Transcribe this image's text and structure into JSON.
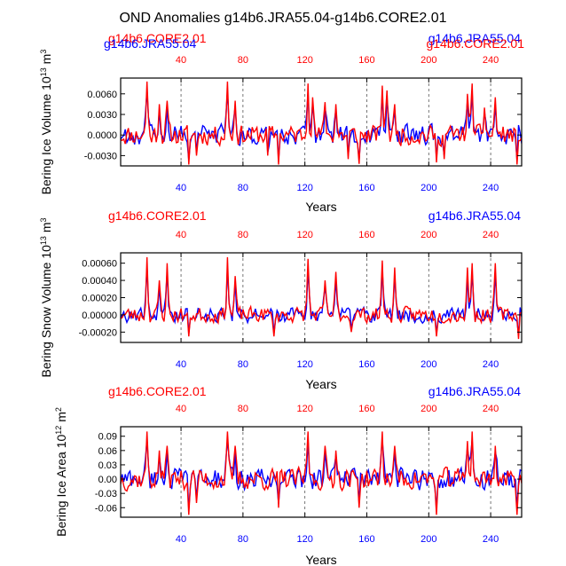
{
  "title": "OND Anomalies g14b6.JRA55.04-g14b6.CORE2.01",
  "colors": {
    "jra": "#0000ff",
    "core": "#ff0000",
    "axis": "#000000",
    "grid": "#555555"
  },
  "chart_data": [
    {
      "type": "line",
      "ylabel_main": "Bering Ice Volume 10",
      "ylabel_exp": "13",
      "ylabel_unit": " m",
      "ylabel_unit_exp": "3",
      "xlabel": "Years",
      "xlim": [
        1,
        260
      ],
      "ylim": [
        -0.0045,
        0.0083
      ],
      "yticks": [
        -0.003,
        0.0,
        0.003,
        0.006
      ],
      "ytick_labels": [
        "-0.0030",
        "0.0000",
        "0.0030",
        "0.0060"
      ],
      "xticks_bottom": [
        40,
        80,
        120,
        160,
        200,
        240
      ],
      "xticks_top": [
        40,
        80,
        120,
        160,
        200,
        240
      ],
      "vlines": [
        40,
        80,
        120,
        160,
        200,
        240
      ],
      "series_labels": [
        {
          "text": "g14b6.CORE2.01",
          "color": "red",
          "pos": "top-left"
        },
        {
          "text": "g14b6.JRA55.04",
          "color": "blue",
          "pos": "top-left"
        },
        {
          "text": "g14b6.JRA55.04",
          "color": "blue",
          "pos": "top-right"
        },
        {
          "text": "g14b6.CORE2.01",
          "color": "red",
          "pos": "top-right"
        }
      ],
      "peaks": [
        {
          "x": 18,
          "y": 0.0078
        },
        {
          "x": 26,
          "y": 0.0045
        },
        {
          "x": 31,
          "y": 0.005
        },
        {
          "x": 70,
          "y": 0.0078
        },
        {
          "x": 75,
          "y": 0.005
        },
        {
          "x": 122,
          "y": 0.0075
        },
        {
          "x": 125,
          "y": 0.0055
        },
        {
          "x": 133,
          "y": 0.0048
        },
        {
          "x": 140,
          "y": 0.0045
        },
        {
          "x": 170,
          "y": 0.0072
        },
        {
          "x": 173,
          "y": 0.0065
        },
        {
          "x": 178,
          "y": 0.0045
        },
        {
          "x": 225,
          "y": 0.006
        },
        {
          "x": 228,
          "y": 0.0075
        },
        {
          "x": 236,
          "y": 0.004
        },
        {
          "x": 243,
          "y": 0.0055
        }
      ],
      "troughs": [
        {
          "x": 45,
          "y": -0.0043
        },
        {
          "x": 50,
          "y": -0.003
        },
        {
          "x": 96,
          "y": -0.003
        },
        {
          "x": 103,
          "y": -0.0043
        },
        {
          "x": 148,
          "y": -0.0035
        },
        {
          "x": 155,
          "y": -0.0042
        },
        {
          "x": 205,
          "y": -0.004
        },
        {
          "x": 210,
          "y": -0.0035
        },
        {
          "x": 257,
          "y": -0.0043
        }
      ],
      "amp": 0.0018,
      "seed": 11
    },
    {
      "type": "line",
      "ylabel_main": "Bering Snow Volume 10",
      "ylabel_exp": "13",
      "ylabel_unit": " m",
      "ylabel_unit_exp": "3",
      "xlabel": "Years",
      "xlim": [
        1,
        260
      ],
      "ylim": [
        -0.00032,
        0.00072
      ],
      "yticks": [
        -0.0002,
        0.0,
        0.0002,
        0.0004,
        0.0006
      ],
      "ytick_labels": [
        "-0.00020",
        "0.00000",
        "0.00020",
        "0.00040",
        "0.00060"
      ],
      "xticks_bottom": [
        40,
        80,
        120,
        160,
        200,
        240
      ],
      "xticks_top": [
        40,
        80,
        120,
        160,
        200,
        240
      ],
      "vlines": [
        40,
        80,
        120,
        160,
        200,
        240
      ],
      "series_labels": [
        {
          "text": "g14b6.CORE2.01",
          "color": "red",
          "pos": "top-left"
        },
        {
          "text": "g14b6.JRA55.04",
          "color": "blue",
          "pos": "top-right"
        }
      ],
      "peaks": [
        {
          "x": 18,
          "y": 0.00067
        },
        {
          "x": 26,
          "y": 0.0004
        },
        {
          "x": 31,
          "y": 0.0006
        },
        {
          "x": 70,
          "y": 0.00067
        },
        {
          "x": 75,
          "y": 0.00045
        },
        {
          "x": 122,
          "y": 0.00065
        },
        {
          "x": 133,
          "y": 0.0004
        },
        {
          "x": 140,
          "y": 0.0005
        },
        {
          "x": 170,
          "y": 0.00063
        },
        {
          "x": 178,
          "y": 0.00055
        },
        {
          "x": 225,
          "y": 0.00055
        },
        {
          "x": 228,
          "y": 0.0006
        },
        {
          "x": 243,
          "y": 0.0006
        }
      ],
      "troughs": [
        {
          "x": 45,
          "y": -0.00025
        },
        {
          "x": 100,
          "y": -0.00025
        },
        {
          "x": 150,
          "y": -0.0002
        },
        {
          "x": 205,
          "y": -0.00025
        },
        {
          "x": 258,
          "y": -0.00028
        }
      ],
      "amp": 0.00011,
      "seed": 23
    },
    {
      "type": "line",
      "ylabel_main": "Bering Ice Area 10",
      "ylabel_exp": "12",
      "ylabel_unit": " m",
      "ylabel_unit_exp": "2",
      "xlabel": "Years",
      "xlim": [
        1,
        260
      ],
      "ylim": [
        -0.08,
        0.11
      ],
      "yticks": [
        -0.06,
        -0.03,
        0.0,
        0.03,
        0.06,
        0.09
      ],
      "ytick_labels": [
        "-0.06",
        "-0.03",
        "0.00",
        "0.03",
        "0.06",
        "0.09"
      ],
      "xticks_bottom": [
        40,
        80,
        120,
        160,
        200,
        240
      ],
      "xticks_top": [
        40,
        80,
        120,
        160,
        200,
        240
      ],
      "vlines": [
        40,
        80,
        120,
        160,
        200,
        240
      ],
      "series_labels": [
        {
          "text": "g14b6.CORE2.01",
          "color": "red",
          "pos": "top-left"
        },
        {
          "text": "g14b6.JRA55.04",
          "color": "blue",
          "pos": "top-right"
        }
      ],
      "peaks": [
        {
          "x": 18,
          "y": 0.1
        },
        {
          "x": 26,
          "y": 0.06
        },
        {
          "x": 31,
          "y": 0.07
        },
        {
          "x": 70,
          "y": 0.1
        },
        {
          "x": 75,
          "y": 0.07
        },
        {
          "x": 122,
          "y": 0.1
        },
        {
          "x": 133,
          "y": 0.07
        },
        {
          "x": 140,
          "y": 0.06
        },
        {
          "x": 170,
          "y": 0.1
        },
        {
          "x": 178,
          "y": 0.07
        },
        {
          "x": 225,
          "y": 0.08
        },
        {
          "x": 228,
          "y": 0.1
        },
        {
          "x": 243,
          "y": 0.07
        }
      ],
      "troughs": [
        {
          "x": 45,
          "y": -0.075
        },
        {
          "x": 50,
          "y": -0.05
        },
        {
          "x": 103,
          "y": -0.06
        },
        {
          "x": 155,
          "y": -0.06
        },
        {
          "x": 205,
          "y": -0.075
        },
        {
          "x": 257,
          "y": -0.075
        }
      ],
      "amp": 0.028,
      "seed": 37
    }
  ]
}
